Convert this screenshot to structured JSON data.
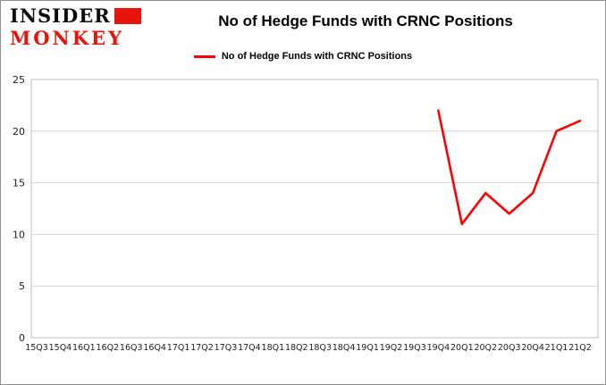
{
  "logo": {
    "line1": "INSIDER",
    "line2": "MONKEY"
  },
  "title": "No of Hedge Funds with CRNC Positions",
  "legend": {
    "label": "No of Hedge Funds with CRNC Positions",
    "color": "#fb0303"
  },
  "colors": {
    "line": "#fb0303",
    "grid": "#d4d4d4",
    "axis": "#bdbdbd",
    "text": "#1c1c1c",
    "logo_red": "#e8140c"
  },
  "chart_data": {
    "type": "line",
    "title": "No of Hedge Funds with CRNC Positions",
    "categories": [
      "15Q3",
      "15Q4",
      "16Q1",
      "16Q2",
      "16Q3",
      "16Q4",
      "17Q1",
      "17Q2",
      "17Q3",
      "17Q4",
      "18Q1",
      "18Q2",
      "18Q3",
      "18Q4",
      "19Q1",
      "19Q2",
      "19Q3",
      "19Q4",
      "20Q1",
      "20Q2",
      "20Q3",
      "20Q4",
      "21Q1",
      "21Q2"
    ],
    "series": [
      {
        "name": "No of Hedge Funds with CRNC Positions",
        "color": "#fb0303",
        "values": [
          null,
          null,
          null,
          null,
          null,
          null,
          null,
          null,
          null,
          null,
          null,
          null,
          null,
          null,
          null,
          null,
          null,
          22,
          11,
          14,
          12,
          14,
          20,
          21
        ]
      }
    ],
    "xlabel": "",
    "ylabel": "",
    "ylim": [
      0,
      25
    ],
    "yticks": [
      0,
      5,
      10,
      15,
      20,
      25
    ],
    "grid": true,
    "legend_position": "top-center"
  }
}
